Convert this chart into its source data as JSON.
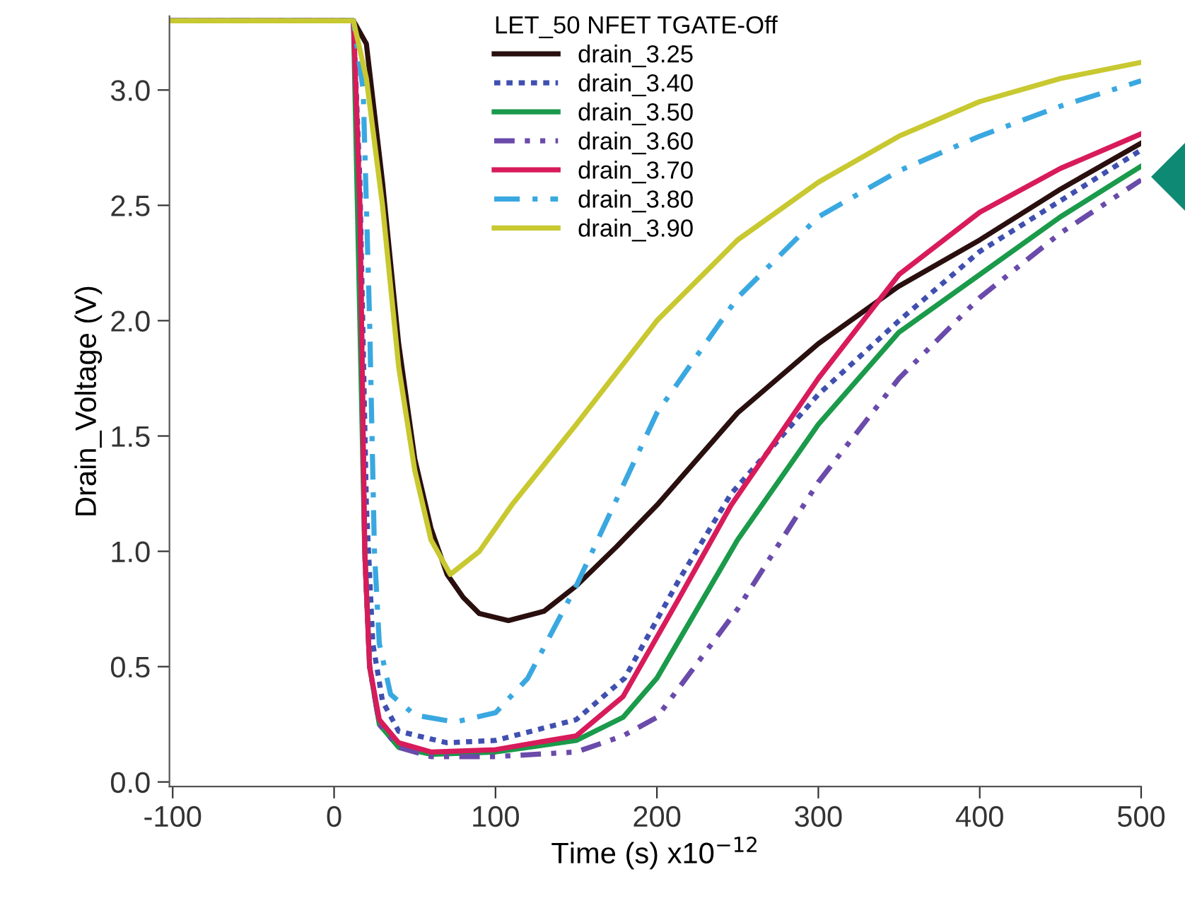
{
  "chart_data": {
    "type": "line",
    "xlabel": "Time (s) x10$^{−12}$",
    "ylabel": "Drain_Voltage (V)",
    "legend_title": "LET_50 NFET TGATE-Off",
    "xlim": [
      -102,
      500
    ],
    "ylim": [
      -0.02,
      3.32
    ],
    "xticks": [
      -100,
      0,
      100,
      200,
      300,
      400,
      500
    ],
    "yticks": [
      {
        "value": 0,
        "label": "0.0"
      },
      0.5,
      {
        "value": 1,
        "label": "1.0"
      },
      1.5,
      {
        "value": 2,
        "label": "2.0"
      },
      2.5,
      {
        "value": 3,
        "label": "3.0"
      }
    ],
    "grid": false,
    "legend": "top",
    "marker": "none",
    "series": [
      {
        "name": "drain_3.25",
        "color": "#2a0f0f",
        "line_style": "solid",
        "x": [
          -102,
          12,
          20,
          30,
          40,
          50,
          60,
          70,
          80,
          90,
          108,
          130,
          150,
          175,
          200,
          250,
          300,
          350,
          400,
          450,
          500
        ],
        "values": [
          3.3,
          3.3,
          3.2,
          2.6,
          1.9,
          1.4,
          1.1,
          0.9,
          0.8,
          0.73,
          0.7,
          0.74,
          0.85,
          1.02,
          1.2,
          1.6,
          1.9,
          2.15,
          2.35,
          2.57,
          2.77
        ]
      },
      {
        "name": "drain_3.40",
        "color": "#4050b0",
        "line_style": "dotted",
        "x": [
          -102,
          12,
          16,
          20,
          24,
          30,
          40,
          70,
          100,
          150,
          180,
          214,
          246,
          300,
          350,
          400,
          450,
          500
        ],
        "values": [
          3.3,
          3.3,
          2.6,
          1.2,
          0.6,
          0.35,
          0.22,
          0.17,
          0.18,
          0.27,
          0.45,
          0.88,
          1.25,
          1.68,
          2.0,
          2.3,
          2.52,
          2.74
        ]
      },
      {
        "name": "drain_3.50",
        "color": "#1a9a4a",
        "line_style": "solid",
        "x": [
          -102,
          12,
          19,
          22,
          28,
          40,
          60,
          100,
          150,
          179,
          200,
          250,
          300,
          350,
          400,
          450,
          500
        ],
        "values": [
          3.3,
          3.3,
          1.0,
          0.5,
          0.25,
          0.15,
          0.12,
          0.13,
          0.18,
          0.28,
          0.45,
          1.05,
          1.55,
          1.95,
          2.2,
          2.45,
          2.67
        ]
      },
      {
        "name": "drain_3.60",
        "color": "#6a4aaa",
        "line_style": "dashdotdot",
        "x": [
          -102,
          12,
          16,
          19,
          22,
          28,
          40,
          60,
          100,
          150,
          179,
          200,
          250,
          300,
          350,
          400,
          450,
          500
        ],
        "values": [
          3.3,
          3.3,
          2.5,
          1.0,
          0.5,
          0.25,
          0.15,
          0.11,
          0.11,
          0.13,
          0.2,
          0.28,
          0.75,
          1.3,
          1.75,
          2.1,
          2.38,
          2.61
        ]
      },
      {
        "name": "drain_3.70",
        "color": "#d81b5a",
        "line_style": "solid",
        "x": [
          -102,
          12,
          16,
          19,
          22,
          28,
          40,
          60,
          100,
          150,
          179,
          214,
          246,
          300,
          350,
          400,
          450,
          500
        ],
        "values": [
          3.3,
          3.3,
          2.5,
          1.0,
          0.5,
          0.27,
          0.17,
          0.13,
          0.14,
          0.2,
          0.37,
          0.8,
          1.2,
          1.75,
          2.2,
          2.47,
          2.66,
          2.81
        ]
      },
      {
        "name": "drain_3.80",
        "color": "#3aa8e0",
        "line_style": "dashdot",
        "x": [
          -102,
          12,
          18,
          22,
          25,
          28,
          35,
          50,
          75,
          100,
          120,
          150,
          180,
          200,
          250,
          300,
          350,
          400,
          450,
          500
        ],
        "values": [
          3.3,
          3.3,
          3.0,
          2.0,
          1.0,
          0.6,
          0.38,
          0.29,
          0.26,
          0.3,
          0.45,
          0.85,
          1.3,
          1.6,
          2.1,
          2.45,
          2.65,
          2.8,
          2.93,
          3.04
        ]
      },
      {
        "name": "drain_3.90",
        "color": "#c8c830",
        "line_style": "solid",
        "x": [
          -102,
          12,
          20,
          30,
          40,
          50,
          60,
          72,
          90,
          110,
          150,
          200,
          250,
          300,
          350,
          400,
          450,
          500
        ],
        "values": [
          3.3,
          3.3,
          3.05,
          2.5,
          1.8,
          1.35,
          1.05,
          0.9,
          1.0,
          1.2,
          1.55,
          2.0,
          2.35,
          2.6,
          2.8,
          2.95,
          3.05,
          3.12
        ]
      }
    ]
  }
}
